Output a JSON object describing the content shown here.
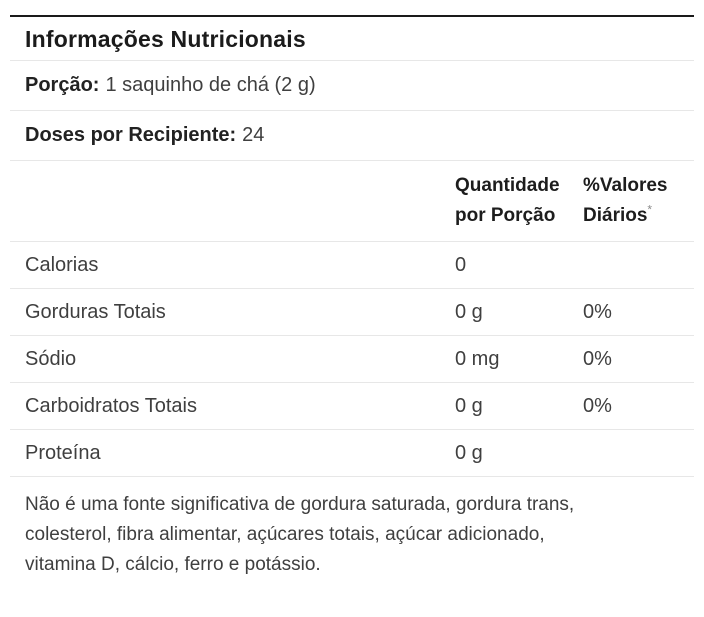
{
  "label": {
    "title": "Informações Nutricionais",
    "serving": {
      "label": "Porção:",
      "value": "1 saquinho de chá (2 g)"
    },
    "servings_per_container": {
      "label": "Doses por Recipiente:",
      "value": "24"
    },
    "columns": {
      "amount_line1": "Quantidade",
      "amount_line2": "por Porção",
      "dv_line1": "%Valores",
      "dv_line2": "Diários",
      "dv_footnote_marker": "*"
    },
    "nutrients": [
      {
        "name": "Calorias",
        "amount": "0",
        "dv": ""
      },
      {
        "name": "Gorduras Totais",
        "amount": "0 g",
        "dv": "0%"
      },
      {
        "name": "Sódio",
        "amount": "0 mg",
        "dv": "0%"
      },
      {
        "name": "Carboidratos Totais",
        "amount": "0 g",
        "dv": "0%"
      },
      {
        "name": "Proteína",
        "amount": "0 g",
        "dv": ""
      }
    ],
    "footnote_lines": [
      "Não é uma fonte significativa de gordura saturada, gordura trans,",
      "colesterol, fibra alimentar, açúcares totais, açúcar adicionado,",
      "vitamina D, cálcio, ferro e potássio."
    ],
    "colors": {
      "top_border": "#1a1a1a",
      "divider": "#e7e7e7",
      "text_primary": "#1b1b1b",
      "text_secondary": "#3f3f3f"
    }
  }
}
